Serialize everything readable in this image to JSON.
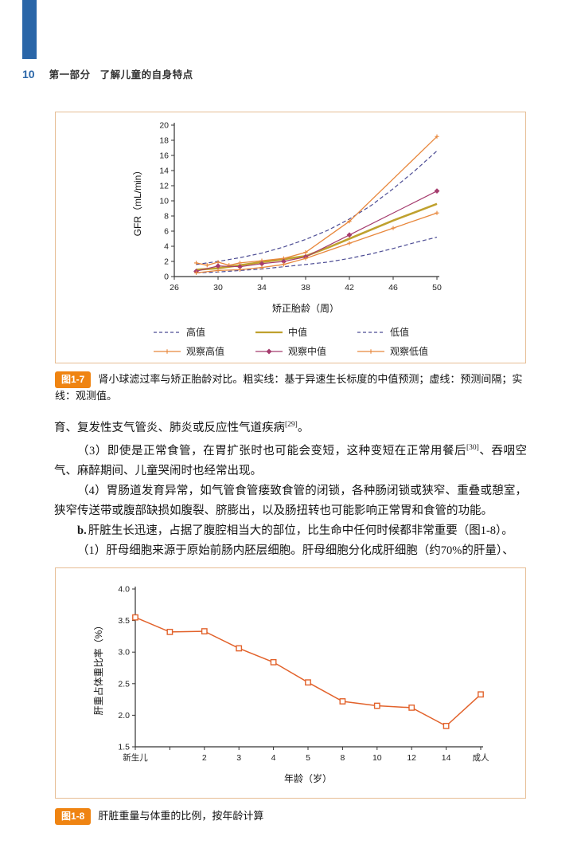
{
  "page": {
    "number": "10",
    "section": "第一部分",
    "chapter_title": "了解儿童的自身特点"
  },
  "colors": {
    "brand_blue": "#2a66a8",
    "box_border": "#e6bd94",
    "badge_orange": "#ef8412"
  },
  "captions": {
    "fig17": {
      "badge": "图1-7",
      "text": "肾小球滤过率与矫正胎龄对比。粗实线：基于异速生长标度的中值预测；虚线：预测间隔；实线：观测值。"
    },
    "fig18": {
      "badge": "图1-8",
      "text": "肝脏重量与体重的比例，按年龄计算"
    }
  },
  "body": {
    "p1": {
      "text": "育、复发性支气管炎、肺炎或反应性气道疾病",
      "sup": "[29]",
      "tail": "。"
    },
    "p2": {
      "text": "（3）即使是正常食管，在胃扩张时也可能会变短，这种变短在正常用餐后",
      "sup": "[30]",
      "tail": "、吞咽空气、麻醉期间、儿童哭闹时也经常出现。"
    },
    "p3": {
      "text": "（4）胃肠道发育异常，如气管食管瘘致食管的闭锁，各种肠闭锁或狭窄、重叠或憩室，狭窄传送带或腹部缺损如腹裂、脐膨出，以及肠扭转也可能影响正常胃和食管的功能。"
    },
    "p4": {
      "bold": "b.",
      "text": "肝脏生长迅速，占据了腹腔相当大的部位，比生命中任何时候都非常重要（图1-8）。"
    },
    "p5": {
      "text": "（1）肝母细胞来源于原始前肠内胚层细胞。肝母细胞分化成肝细胞（约70%的肝量）、"
    }
  },
  "chart_data": [
    {
      "id": "fig17",
      "type": "line",
      "title": "",
      "xlabel": "矫正胎龄（周）",
      "ylabel": "GFR（mL/min）",
      "xlim": [
        26,
        50
      ],
      "ylim": [
        0,
        20
      ],
      "xticks": [
        26,
        30,
        34,
        38,
        42,
        46,
        50
      ],
      "yticks": [
        0,
        2,
        4,
        6,
        8,
        10,
        12,
        14,
        16,
        18,
        20
      ],
      "grid": false,
      "legend_position": "bottom",
      "series": [
        {
          "name": "高值",
          "color": "#4c4c94",
          "dash": "5 3",
          "width": 1.2,
          "marker": "none",
          "points": [
            [
              28,
              1.6
            ],
            [
              30,
              2.0
            ],
            [
              32,
              2.5
            ],
            [
              34,
              3.1
            ],
            [
              36,
              3.9
            ],
            [
              38,
              4.9
            ],
            [
              40,
              6.1
            ],
            [
              42,
              7.6
            ],
            [
              44,
              9.4
            ],
            [
              46,
              11.6
            ],
            [
              48,
              14.0
            ],
            [
              50,
              16.6
            ]
          ]
        },
        {
          "name": "中值",
          "color": "#bfa12e",
          "width": 2.6,
          "marker": "none",
          "points": [
            [
              28,
              0.9
            ],
            [
              30,
              1.1
            ],
            [
              32,
              1.5
            ],
            [
              34,
              1.9
            ],
            [
              36,
              2.3
            ],
            [
              38,
              2.7
            ],
            [
              40,
              3.8
            ],
            [
              42,
              5.0
            ],
            [
              44,
              6.2
            ],
            [
              46,
              7.4
            ],
            [
              48,
              8.5
            ],
            [
              50,
              9.6
            ]
          ]
        },
        {
          "name": "低值",
          "color": "#4c4c94",
          "dash": "5 3",
          "width": 1.2,
          "marker": "none",
          "points": [
            [
              28,
              0.5
            ],
            [
              30,
              0.6
            ],
            [
              32,
              0.8
            ],
            [
              34,
              1.0
            ],
            [
              36,
              1.3
            ],
            [
              38,
              1.6
            ],
            [
              40,
              1.9
            ],
            [
              42,
              2.4
            ],
            [
              44,
              3.0
            ],
            [
              46,
              3.7
            ],
            [
              48,
              4.5
            ],
            [
              50,
              5.2
            ]
          ]
        },
        {
          "name": "观察高值",
          "color": "#e8873c",
          "width": 1.3,
          "marker": "plus",
          "points": [
            [
              28,
              1.8
            ],
            [
              29,
              1.5
            ],
            [
              30,
              1.9
            ],
            [
              31,
              1.5
            ],
            [
              32,
              1.8
            ],
            [
              34,
              2.1
            ],
            [
              36,
              2.4
            ],
            [
              38,
              3.2
            ],
            [
              42,
              7.3
            ],
            [
              50,
              18.5
            ]
          ]
        },
        {
          "name": "观察中值",
          "color": "#a53c6e",
          "width": 1.2,
          "marker": "diamond",
          "points": [
            [
              28,
              0.7
            ],
            [
              30,
              1.4
            ],
            [
              32,
              1.3
            ],
            [
              34,
              1.7
            ],
            [
              36,
              2.0
            ],
            [
              38,
              2.6
            ],
            [
              42,
              5.5
            ],
            [
              50,
              11.3
            ]
          ]
        },
        {
          "name": "观察低值",
          "color": "#e8873c",
          "width": 1.3,
          "marker": "plus",
          "points": [
            [
              28,
              0.5
            ],
            [
              30,
              0.8
            ],
            [
              32,
              0.9
            ],
            [
              34,
              1.2
            ],
            [
              36,
              1.6
            ],
            [
              38,
              2.4
            ],
            [
              42,
              4.4
            ],
            [
              46,
              6.4
            ],
            [
              50,
              8.4
            ]
          ]
        }
      ]
    },
    {
      "id": "fig18",
      "type": "line",
      "title": "",
      "xlabel": "年龄（岁）",
      "ylabel": "肝重占体重比率（%）",
      "categories": [
        "新生儿",
        "",
        "2",
        "3",
        "4",
        "5",
        "8",
        "10",
        "12",
        "14",
        "成人"
      ],
      "ylim": [
        1.5,
        4.0
      ],
      "yticks": [
        1.5,
        2.0,
        2.5,
        3.0,
        3.5,
        4.0
      ],
      "ydecimals": 1,
      "grid": false,
      "legend_position": "none",
      "series": [
        {
          "name": "肝重占体重比率",
          "color": "#e2622b",
          "width": 1.5,
          "marker": "square",
          "values": [
            3.55,
            3.32,
            3.33,
            3.06,
            2.84,
            2.52,
            2.22,
            2.15,
            2.12,
            1.83,
            2.33
          ]
        }
      ]
    }
  ]
}
